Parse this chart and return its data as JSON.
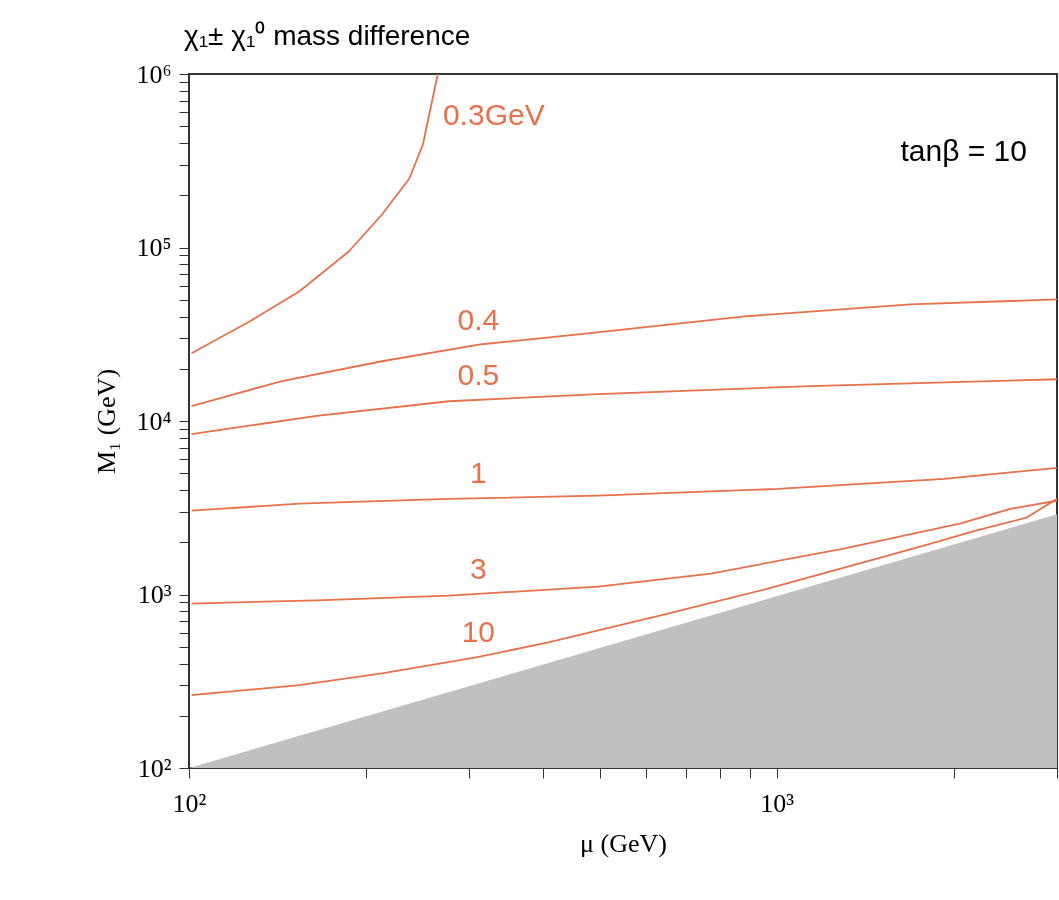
{
  "chart_data": {
    "type": "line",
    "title": "χ₁± χ₁⁰ mass difference",
    "xlabel": "μ (GeV)",
    "ylabel": "M₁ (GeV)",
    "log": "xy",
    "grid": false,
    "legend": false,
    "marker": "none",
    "line_style": "solid",
    "xlim": [
      100,
      3000
    ],
    "ylim": [
      100,
      1000000
    ],
    "xticks": [
      {
        "value": 100,
        "label": "10²"
      },
      {
        "value": 200,
        "label": null
      },
      {
        "value": 300,
        "label": null
      },
      {
        "value": 400,
        "label": null
      },
      {
        "value": 500,
        "label": null
      },
      {
        "value": 600,
        "label": null
      },
      {
        "value": 700,
        "label": null
      },
      {
        "value": 800,
        "label": null
      },
      {
        "value": 900,
        "label": null
      },
      {
        "value": 1000,
        "label": "10³"
      },
      {
        "value": 2000,
        "label": null
      },
      {
        "value": 3000,
        "label": null
      }
    ],
    "yticks": [
      {
        "value": 100,
        "label": "10²"
      },
      {
        "value": 200,
        "label": null
      },
      {
        "value": 300,
        "label": null
      },
      {
        "value": 400,
        "label": null
      },
      {
        "value": 500,
        "label": null
      },
      {
        "value": 600,
        "label": null
      },
      {
        "value": 700,
        "label": null
      },
      {
        "value": 800,
        "label": null
      },
      {
        "value": 900,
        "label": null
      },
      {
        "value": 1000,
        "label": "10³"
      },
      {
        "value": 2000,
        "label": null
      },
      {
        "value": 3000,
        "label": null
      },
      {
        "value": 4000,
        "label": null
      },
      {
        "value": 5000,
        "label": null
      },
      {
        "value": 6000,
        "label": null
      },
      {
        "value": 7000,
        "label": null
      },
      {
        "value": 8000,
        "label": null
      },
      {
        "value": 9000,
        "label": null
      },
      {
        "value": 10000,
        "label": "10⁴"
      },
      {
        "value": 20000,
        "label": null
      },
      {
        "value": 30000,
        "label": null
      },
      {
        "value": 40000,
        "label": null
      },
      {
        "value": 50000,
        "label": null
      },
      {
        "value": 60000,
        "label": null
      },
      {
        "value": 70000,
        "label": null
      },
      {
        "value": 80000,
        "label": null
      },
      {
        "value": 90000,
        "label": null
      },
      {
        "value": 100000,
        "label": "10⁵"
      },
      {
        "value": 200000,
        "label": null
      },
      {
        "value": 300000,
        "label": null
      },
      {
        "value": 400000,
        "label": null
      },
      {
        "value": 500000,
        "label": null
      },
      {
        "value": 600000,
        "label": null
      },
      {
        "value": 700000,
        "label": null
      },
      {
        "value": 800000,
        "label": null
      },
      {
        "value": 900000,
        "label": null
      },
      {
        "value": 1000000,
        "label": "10⁶"
      }
    ],
    "series": [
      {
        "type": "area",
        "color": "#c0c0c0",
        "x": [
          100,
          3000
        ],
        "values": [
          100,
          2900
        ]
      },
      {
        "name": "0.3GeV",
        "color": "#e8704a",
        "x": [
          101,
          127,
          154,
          187,
          213,
          237,
          250,
          259,
          265
        ],
        "values": [
          24600,
          37600,
          55800,
          94800,
          155000,
          249000,
          391000,
          690000,
          1000000
        ]
      },
      {
        "name": "0.4",
        "color": "#e8704a",
        "x": [
          101,
          144,
          213,
          315,
          460,
          883,
          1690,
          3000
        ],
        "values": [
          12200,
          17000,
          22100,
          27700,
          31600,
          40100,
          47000,
          50200
        ]
      },
      {
        "name": "0.5",
        "color": "#e8704a",
        "x": [
          101,
          165,
          277,
          497,
          1140,
          3000
        ],
        "values": [
          8410,
          10700,
          13000,
          14300,
          15900,
          17400
        ]
      },
      {
        "name": "1",
        "color": "#e8704a",
        "x": [
          101,
          154,
          277,
          497,
          1005,
          1930,
          3000
        ],
        "values": [
          3040,
          3340,
          3560,
          3710,
          4060,
          4640,
          5370
        ]
      },
      {
        "name": "3",
        "color": "#e8704a",
        "x": [
          101,
          165,
          277,
          497,
          773,
          1300,
          2050,
          2500,
          3000
        ],
        "values": [
          887,
          925,
          986,
          1110,
          1320,
          1840,
          2560,
          3120,
          3470
        ]
      },
      {
        "name": "10",
        "color": "#e8704a",
        "x": [
          101,
          154,
          213,
          308,
          409,
          497,
          635,
          966,
          1440,
          1780,
          2190,
          2660,
          3000
        ],
        "values": [
          263,
          300,
          351,
          434,
          530,
          621,
          757,
          1080,
          1570,
          1910,
          2340,
          2770,
          3560
        ]
      }
    ],
    "annotations": [
      "tanβ = 10"
    ]
  }
}
